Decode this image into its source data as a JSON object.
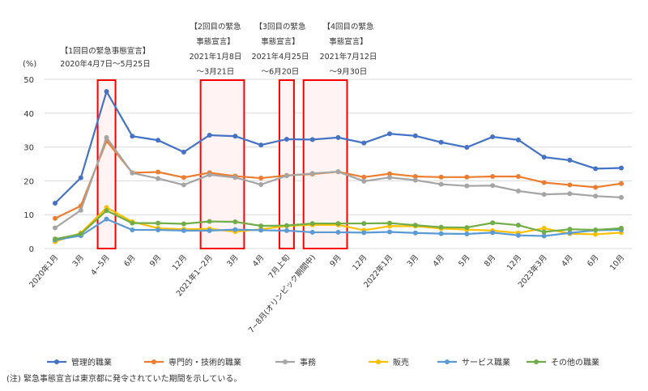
{
  "chart_data": {
    "type": "line",
    "ylabel": "(%)",
    "ylim": [
      0,
      50
    ],
    "yticks": [
      0,
      10,
      20,
      30,
      40,
      50
    ],
    "grid": "horizontal",
    "legend_position": "bottom",
    "categories": [
      "2020年1月",
      "3月",
      "4~5月",
      "6月",
      "9月",
      "12月",
      "2021年1~2月",
      "3月",
      "4月",
      "7月上旬",
      "7~8月(オリンピック期間中)",
      "9月",
      "12月",
      "2022年1月",
      "3月",
      "4月",
      "5月",
      "8月",
      "12月",
      "2023年3月",
      "4月",
      "6月",
      "10月"
    ],
    "series": [
      {
        "name": "管理的職業",
        "color": "#4472c4",
        "values": [
          13.4,
          20.9,
          46.4,
          33.2,
          32.0,
          28.5,
          33.5,
          33.2,
          30.6,
          32.3,
          32.2,
          32.8,
          31.2,
          33.9,
          33.3,
          31.4,
          29.9,
          33.0,
          32.1,
          27.0,
          26.1,
          23.6,
          23.8
        ]
      },
      {
        "name": "専門的・技術的職業",
        "color": "#ed7d31",
        "values": [
          8.9,
          12.6,
          31.8,
          22.4,
          22.6,
          21.0,
          22.4,
          21.4,
          20.8,
          21.6,
          22.0,
          22.7,
          21.1,
          22.1,
          21.3,
          21.1,
          21.1,
          21.3,
          21.3,
          19.5,
          18.8,
          18.1,
          19.2
        ]
      },
      {
        "name": "事務",
        "color": "#a5a5a5",
        "values": [
          6.1,
          11.3,
          32.8,
          22.3,
          20.7,
          18.8,
          21.8,
          21.0,
          18.9,
          21.5,
          22.2,
          22.7,
          19.9,
          21.0,
          20.2,
          19.0,
          18.5,
          18.6,
          17.0,
          16.0,
          16.2,
          15.5,
          15.1
        ]
      },
      {
        "name": "販売",
        "color": "#ffc000",
        "values": [
          2.0,
          4.6,
          12.1,
          7.9,
          6.0,
          5.7,
          5.8,
          5.0,
          5.7,
          6.7,
          7.0,
          7.0,
          5.4,
          6.6,
          6.6,
          5.9,
          5.6,
          5.3,
          4.6,
          6.0,
          4.4,
          4.2,
          4.7
        ]
      },
      {
        "name": "サービス職業",
        "color": "#5b9bd5",
        "values": [
          2.5,
          3.8,
          8.7,
          5.5,
          5.5,
          5.3,
          5.3,
          5.6,
          5.4,
          5.3,
          4.8,
          4.8,
          4.7,
          4.9,
          4.6,
          4.4,
          4.3,
          4.7,
          3.9,
          3.7,
          4.6,
          5.4,
          5.5
        ]
      },
      {
        "name": "その他の職業",
        "color": "#70ad47",
        "values": [
          2.8,
          4.3,
          11.2,
          7.5,
          7.5,
          7.3,
          8.0,
          7.9,
          6.7,
          6.8,
          7.4,
          7.4,
          7.4,
          7.5,
          6.9,
          6.3,
          6.2,
          7.6,
          6.9,
          4.9,
          5.7,
          5.5,
          6.0
        ]
      }
    ],
    "highlight_periods": [
      {
        "from_index": 2,
        "to_index": 2,
        "lines": [
          "【1回目の緊急事態宣言】",
          "2020年4月7日～5月25日"
        ]
      },
      {
        "from_index": 6,
        "to_index": 7,
        "lines": [
          "【2回目の緊急",
          "事態宣言】",
          "2021年1月8日",
          "～3月21日"
        ]
      },
      {
        "from_index": 9,
        "to_index": 9,
        "lines": [
          "【3回目の緊急",
          "事態宣言】",
          "2021年4月25日",
          "～6月20日"
        ]
      },
      {
        "from_index": 10,
        "to_index": 11,
        "lines": [
          "【4回目の緊急",
          "事態宣言】",
          "2021年7月12日",
          "～9月30日"
        ]
      }
    ],
    "highlight_color": "#ff0000",
    "note": "(注) 緊急事態宣言は東京都に発令されていた期間を示している。"
  }
}
